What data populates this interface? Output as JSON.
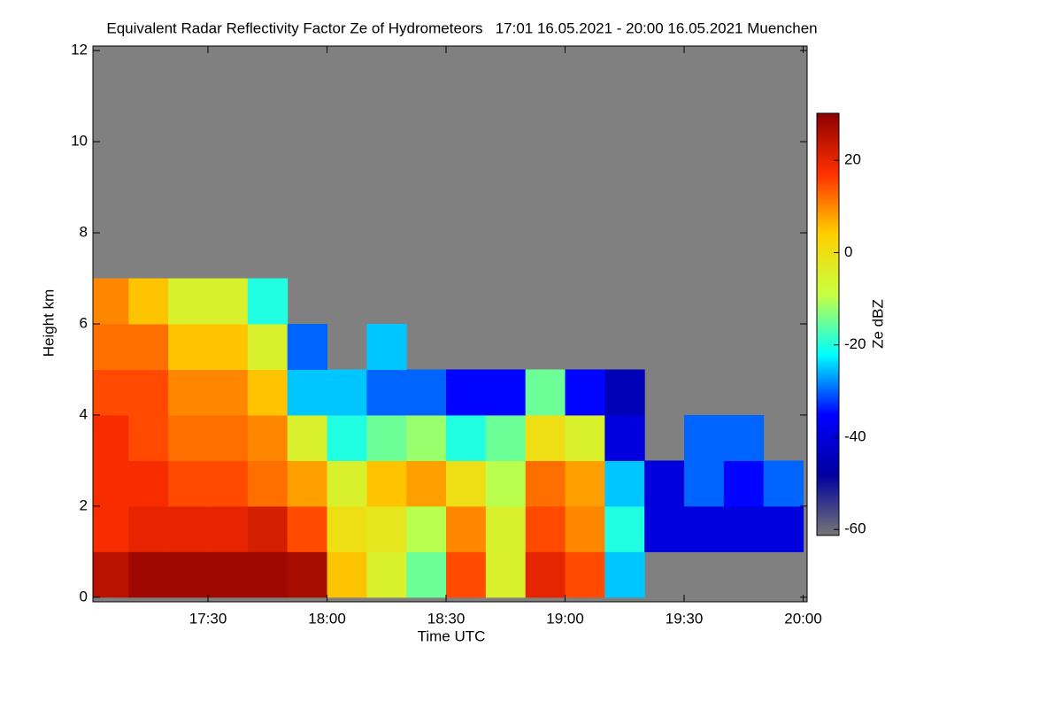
{
  "chart_data": {
    "type": "heatmap",
    "title": "Equivalent Radar Reflectivity Factor Ze of Hydrometeors   17:01 16.05.2021 - 20:00 16.05.2021 Muenchen",
    "xlabel": "Time UTC",
    "ylabel": "Height km",
    "colorbar_label": "Ze dBZ",
    "background": "#808080",
    "colormap": [
      "#777777",
      "#0000a0",
      "#0000ff",
      "#00ffff",
      "#c8ff40",
      "#ffd000",
      "#ff3000",
      "#8b0000"
    ],
    "x_edges": [
      1021,
      1030,
      1040,
      1050,
      1060,
      1070,
      1080,
      1090,
      1100,
      1110,
      1120,
      1130,
      1140,
      1150,
      1160,
      1170,
      1180,
      1190,
      1200
    ],
    "y_edges": [
      0,
      1,
      2,
      3,
      4,
      5,
      6,
      7,
      8
    ],
    "values": [
      [
        25,
        28,
        28,
        28,
        28,
        27,
        5,
        -5,
        -15,
        15,
        -5,
        20,
        15,
        -25,
        null,
        null,
        null,
        null
      ],
      [
        18,
        20,
        20,
        20,
        22,
        15,
        0,
        -2,
        -10,
        10,
        -5,
        15,
        10,
        -20,
        -40,
        -40,
        -40,
        -40
      ],
      [
        18,
        18,
        15,
        15,
        12,
        8,
        -5,
        5,
        8,
        0,
        -10,
        12,
        8,
        -25,
        -40,
        -30,
        -35,
        -30
      ],
      [
        18,
        15,
        12,
        12,
        10,
        -5,
        -20,
        -15,
        -12,
        -20,
        -15,
        0,
        -5,
        -40,
        null,
        -30,
        -30,
        null
      ],
      [
        15,
        15,
        10,
        10,
        5,
        -25,
        -25,
        -30,
        -30,
        -35,
        -35,
        -15,
        -35,
        -45,
        null,
        null,
        null,
        null
      ],
      [
        12,
        12,
        5,
        5,
        -5,
        -30,
        null,
        -25,
        null,
        null,
        null,
        null,
        null,
        null,
        null,
        null,
        null,
        null
      ],
      [
        10,
        5,
        -5,
        -5,
        -20,
        null,
        null,
        null,
        null,
        null,
        null,
        null,
        null,
        null,
        null,
        null,
        null,
        null
      ],
      [
        null,
        null,
        null,
        null,
        null,
        null,
        null,
        null,
        null,
        null,
        null,
        null,
        null,
        null,
        null,
        null,
        null,
        null
      ]
    ],
    "xlim": [
      1021,
      1201
    ],
    "xticks": [
      {
        "value": 1050,
        "label": "17:30"
      },
      {
        "value": 1080,
        "label": "18:00"
      },
      {
        "value": 1110,
        "label": "18:30"
      },
      {
        "value": 1140,
        "label": "19:00"
      },
      {
        "value": 1170,
        "label": "19:30"
      },
      {
        "value": 1200,
        "label": "20:00"
      }
    ],
    "ylim": [
      -0.1,
      12.1
    ],
    "yticks": [
      0,
      2,
      4,
      6,
      8,
      10,
      12
    ],
    "zlim": [
      -61.3,
      30.2
    ],
    "zticks": [
      -60,
      -40,
      -20,
      0,
      20
    ]
  }
}
